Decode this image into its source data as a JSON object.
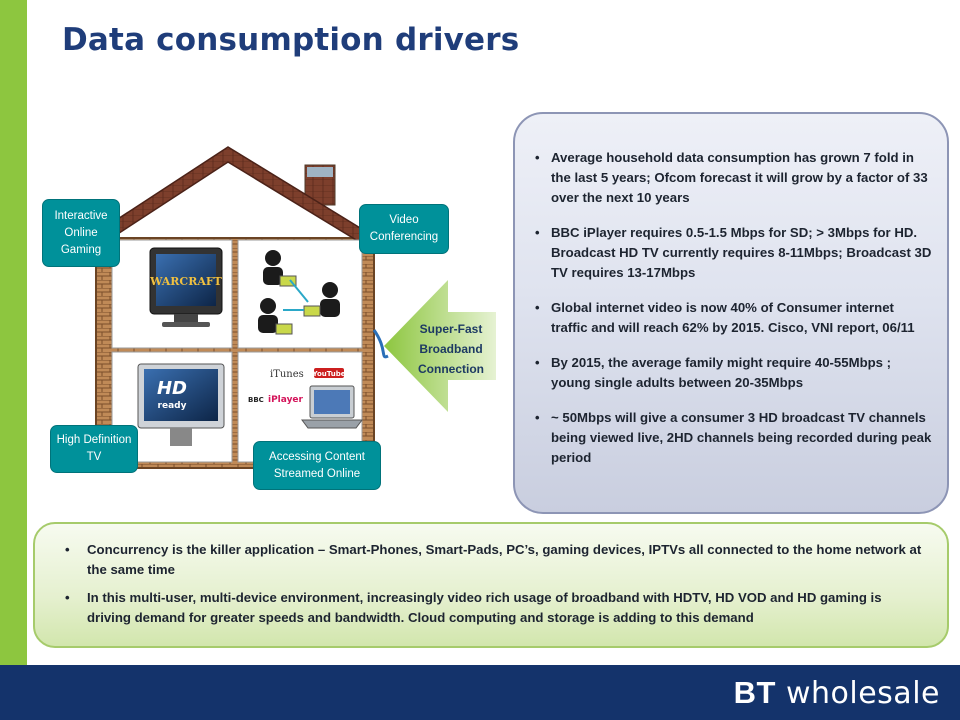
{
  "slide": {
    "title": "Data consumption drivers",
    "brand": {
      "prefix": "BT",
      "suffix": "wholesale"
    }
  },
  "house_labels": {
    "gaming": "Interactive Online Gaming",
    "video": "Video Conferencing",
    "hd": "High Definition TV",
    "streaming": "Accessing Content Streamed Online"
  },
  "screen_texts": {
    "game_logo": "WARCRAFT",
    "hd_logo": "HD",
    "hd_sub": "ready",
    "itunes": "iTunes",
    "youtube": "YouTube",
    "bbc": "BBC",
    "iplayer": "iPlayer"
  },
  "broadband_arrow": "Super-Fast Broadband Connection",
  "right_panel": {
    "bullets": [
      "Average household data consumption has grown 7 fold in the last 5 years; Ofcom forecast it will grow by a factor of 33 over the next 10 years",
      "BBC iPlayer requires 0.5-1.5 Mbps for SD; > 3Mbps for HD.  Broadcast HD TV currently requires  8-11Mbps; Broadcast 3D TV requires 13-17Mbps",
      "Global internet video is  now 40% of Consumer internet traffic  and will reach 62% by 2015.  Cisco, VNI report, 06/11",
      "By 2015, the average family might require 40-55Mbps ; young single adults between 20-35Mbps",
      "~ 50Mbps will give a consumer 3 HD broadcast TV channels being viewed live, 2HD channels being recorded during peak period"
    ]
  },
  "bottom_panel": {
    "bullets": [
      "Concurrency is the killer application – Smart-Phones, Smart-Pads, PC’s, gaming devices, IPTVs all connected to the home network at the same time",
      "In this multi-user, multi-device environment, increasingly video rich usage of broadband with HDTV, HD VOD and HD gaming is driving demand for greater speeds and bandwidth.  Cloud computing and storage is adding to this demand"
    ]
  },
  "colors": {
    "accent_green": "#8dc63f",
    "footer_navy": "#14336b",
    "title_blue": "#1f3d7a",
    "label_teal": "#00919a"
  }
}
